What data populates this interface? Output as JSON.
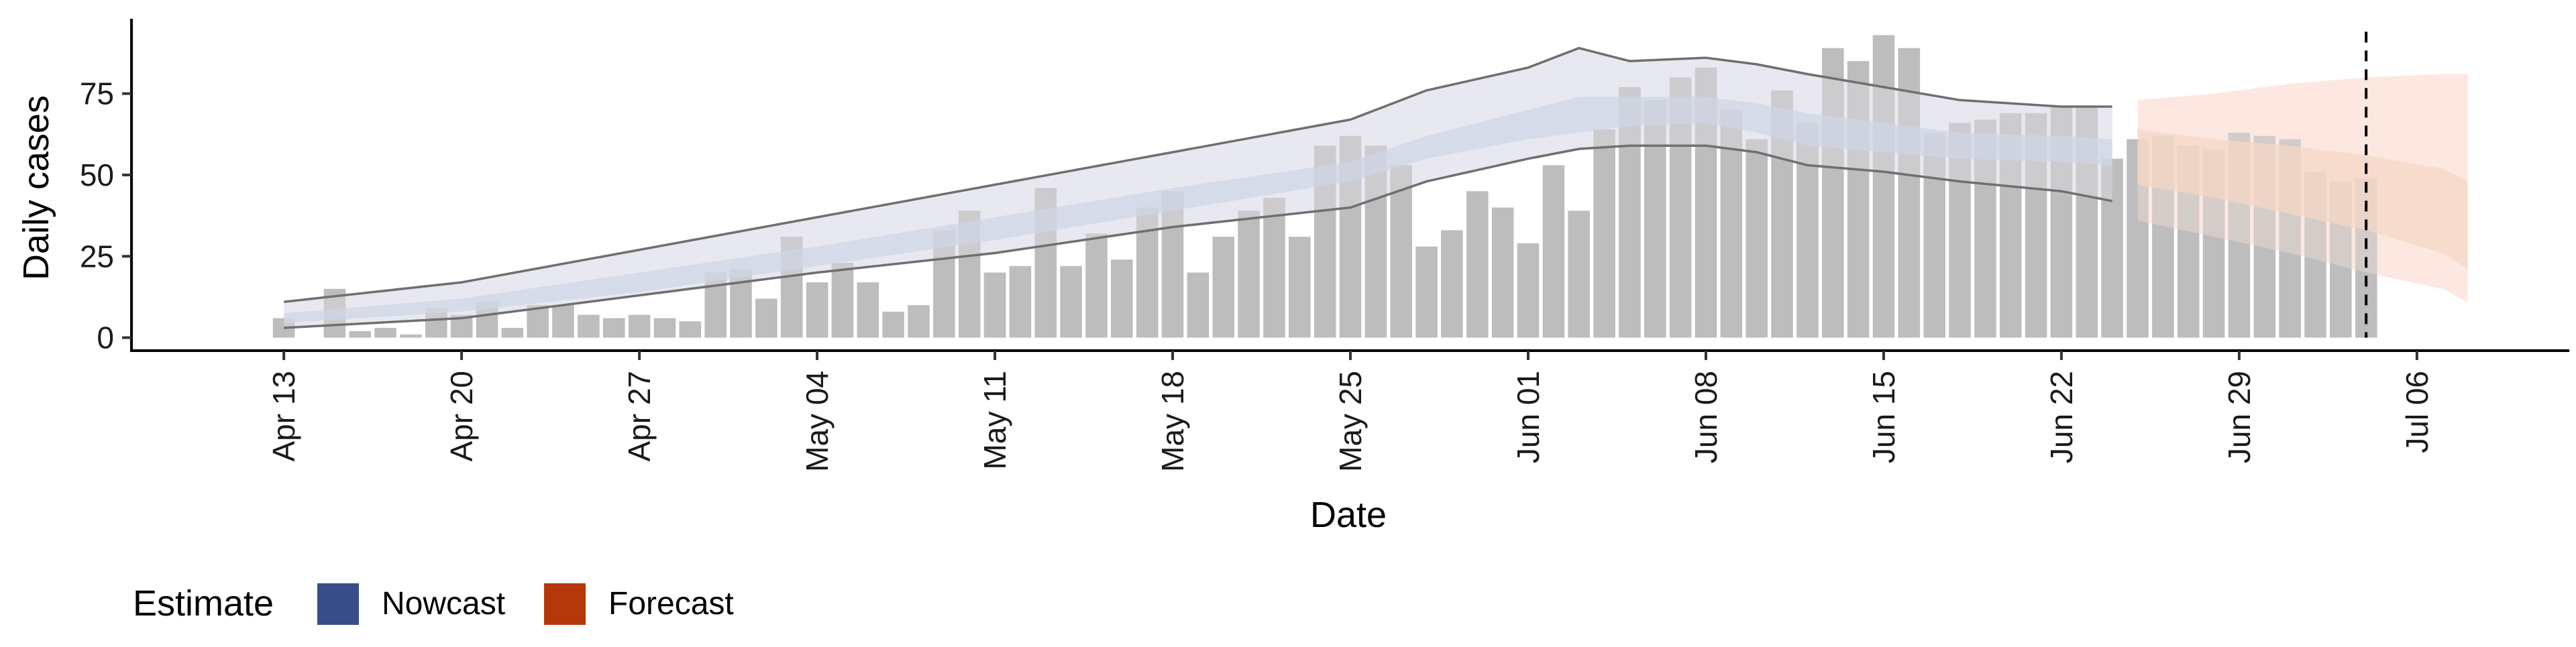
{
  "chart_data": {
    "type": "bar",
    "xlabel": "Date",
    "ylabel": "Daily cases",
    "ylim": [
      -4,
      98
    ],
    "yticks": [
      0,
      25,
      50,
      75
    ],
    "xlim": [
      "2020-04-07",
      "2020-07-12"
    ],
    "xticks": [
      {
        "date": "2020-04-13",
        "label": "Apr 13"
      },
      {
        "date": "2020-04-20",
        "label": "Apr 20"
      },
      {
        "date": "2020-04-27",
        "label": "Apr 27"
      },
      {
        "date": "2020-05-04",
        "label": "May 04"
      },
      {
        "date": "2020-05-11",
        "label": "May 11"
      },
      {
        "date": "2020-05-18",
        "label": "May 18"
      },
      {
        "date": "2020-05-25",
        "label": "May 25"
      },
      {
        "date": "2020-06-01",
        "label": "Jun 01"
      },
      {
        "date": "2020-06-08",
        "label": "Jun 08"
      },
      {
        "date": "2020-06-15",
        "label": "Jun 15"
      },
      {
        "date": "2020-06-22",
        "label": "Jun 22"
      },
      {
        "date": "2020-06-29",
        "label": "Jun 29"
      },
      {
        "date": "2020-07-06",
        "label": "Jul 06"
      }
    ],
    "grid": false,
    "legend": {
      "title": "Estimate",
      "position": "bottom-left",
      "entries": [
        {
          "name": "Nowcast",
          "color": "#374E8A"
        },
        {
          "name": "Forecast",
          "color": "#B5380A"
        }
      ]
    },
    "reference_line": {
      "date": "2020-07-04",
      "style": "dashed"
    },
    "colors": {
      "bars": "#BDBDBD",
      "nowcast_outer": "#E8E9F2",
      "nowcast_inner": "#C4CCE0",
      "forecast_outer": "#FCE9E0",
      "forecast_inner": "#F2CDBA",
      "bound_lines": "#6F6F6F"
    },
    "observed": {
      "dates": [
        "2020-04-13",
        "2020-04-14",
        "2020-04-15",
        "2020-04-16",
        "2020-04-17",
        "2020-04-18",
        "2020-04-19",
        "2020-04-20",
        "2020-04-21",
        "2020-04-22",
        "2020-04-23",
        "2020-04-24",
        "2020-04-25",
        "2020-04-26",
        "2020-04-27",
        "2020-04-28",
        "2020-04-29",
        "2020-04-30",
        "2020-05-01",
        "2020-05-02",
        "2020-05-03",
        "2020-05-04",
        "2020-05-05",
        "2020-05-06",
        "2020-05-07",
        "2020-05-08",
        "2020-05-09",
        "2020-05-10",
        "2020-05-11",
        "2020-05-12",
        "2020-05-13",
        "2020-05-14",
        "2020-05-15",
        "2020-05-16",
        "2020-05-17",
        "2020-05-18",
        "2020-05-19",
        "2020-05-20",
        "2020-05-21",
        "2020-05-22",
        "2020-05-23",
        "2020-05-24",
        "2020-05-25",
        "2020-05-26",
        "2020-05-27",
        "2020-05-28",
        "2020-05-29",
        "2020-05-30",
        "2020-05-31",
        "2020-06-01",
        "2020-06-02",
        "2020-06-03",
        "2020-06-04",
        "2020-06-05",
        "2020-06-06",
        "2020-06-07",
        "2020-06-08",
        "2020-06-09",
        "2020-06-10",
        "2020-06-11",
        "2020-06-12",
        "2020-06-13",
        "2020-06-14",
        "2020-06-15",
        "2020-06-16",
        "2020-06-17",
        "2020-06-18",
        "2020-06-19",
        "2020-06-20",
        "2020-06-21",
        "2020-06-22",
        "2020-06-23",
        "2020-06-24",
        "2020-06-25",
        "2020-06-26",
        "2020-06-27",
        "2020-06-28",
        "2020-06-29",
        "2020-06-30",
        "2020-07-01",
        "2020-07-02",
        "2020-07-03",
        "2020-07-04"
      ],
      "values": [
        6,
        0,
        15,
        2,
        3,
        1,
        9,
        7,
        11,
        3,
        10,
        10,
        7,
        6,
        7,
        6,
        5,
        20,
        21,
        12,
        31,
        17,
        23,
        17,
        8,
        10,
        33,
        39,
        20,
        22,
        46,
        22,
        32,
        24,
        40,
        45,
        20,
        31,
        39,
        43,
        31,
        59,
        62,
        59,
        53,
        28,
        33,
        45,
        40,
        29,
        53,
        39,
        64,
        77,
        73,
        80,
        83,
        70,
        61,
        76,
        66,
        89,
        85,
        93,
        89,
        63,
        66,
        67,
        69,
        69,
        71,
        71,
        55,
        61,
        62,
        59,
        58,
        63,
        62,
        61,
        51,
        48,
        49
      ]
    },
    "nowcast": {
      "dates": [
        "2020-04-13",
        "2020-04-20",
        "2020-04-27",
        "2020-05-04",
        "2020-05-11",
        "2020-05-18",
        "2020-05-25",
        "2020-05-28",
        "2020-06-01",
        "2020-06-03",
        "2020-06-05",
        "2020-06-08",
        "2020-06-10",
        "2020-06-12",
        "2020-06-15",
        "2020-06-18",
        "2020-06-22",
        "2020-06-24"
      ],
      "upper": [
        11,
        17,
        27,
        37,
        47,
        57,
        67,
        76,
        83,
        89,
        85,
        86,
        84,
        81,
        77,
        73,
        71,
        71
      ],
      "lower": [
        3,
        6,
        13,
        20,
        26,
        34,
        40,
        48,
        55,
        58,
        59,
        59,
        57,
        53,
        51,
        48,
        45,
        42
      ],
      "upper_50": [
        7.5,
        12,
        20,
        28,
        37,
        46,
        54,
        62,
        70,
        74,
        74,
        74,
        72,
        69,
        66,
        63,
        62,
        61
      ],
      "lower_50": [
        4.5,
        8,
        14,
        22,
        30,
        39,
        48,
        55,
        61,
        63,
        65,
        66,
        63,
        59,
        57,
        55,
        54,
        53
      ]
    },
    "forecast": {
      "dates": [
        "2020-06-25",
        "2020-06-28",
        "2020-07-01",
        "2020-07-04",
        "2020-07-07",
        "2020-07-08"
      ],
      "upper": [
        73,
        75,
        78,
        80,
        81,
        81
      ],
      "lower": [
        36,
        31,
        26,
        20,
        15,
        11
      ],
      "upper_50": [
        64,
        61,
        59,
        56,
        52,
        48
      ],
      "lower_50": [
        47,
        43,
        38,
        33,
        26,
        21
      ]
    }
  }
}
